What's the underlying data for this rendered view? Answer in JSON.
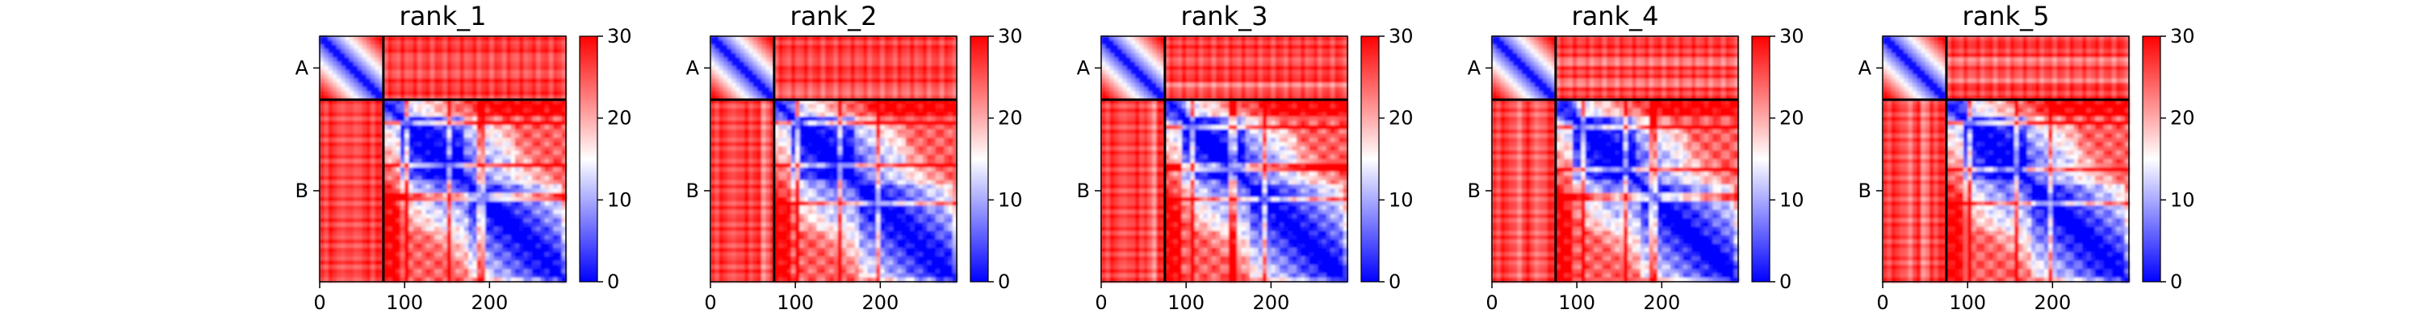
{
  "chart_data": {
    "type": "heatmap",
    "colormap": {
      "low": "#0000ff",
      "mid": "#ffffff",
      "high": "#ff0000"
    },
    "panels": [
      {
        "title": "rank_1"
      },
      {
        "title": "rank_2"
      },
      {
        "title": "rank_3"
      },
      {
        "title": "rank_4"
      },
      {
        "title": "rank_5"
      }
    ],
    "residues_total": 290,
    "chain_boundary": 75,
    "chains": [
      {
        "label": "A",
        "start": 0,
        "end": 75
      },
      {
        "label": "B",
        "start": 75,
        "end": 290
      }
    ],
    "x_ticks": [
      0,
      100,
      200
    ],
    "x_tick_labels": [
      "0",
      "100",
      "200"
    ],
    "colorbar": {
      "vmin": 0,
      "vmax": 30,
      "ticks": [
        0,
        10,
        20,
        30
      ],
      "tick_labels": [
        "0",
        "10",
        "20",
        "30"
      ]
    }
  }
}
